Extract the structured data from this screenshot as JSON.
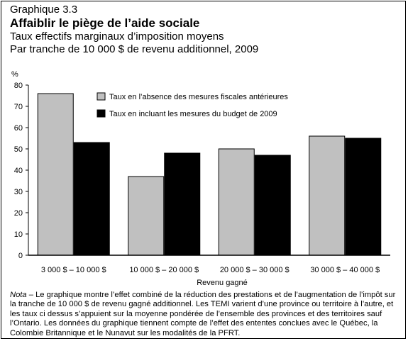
{
  "header": {
    "label": "Graphique 3.3",
    "title": "Affaiblir le piège de l’aide sociale",
    "subtitle1": "Taux effectifs marginaux d’imposition moyens",
    "subtitle2": "Par tranche de 10 000 $ de revenu additionnel, 2009"
  },
  "chart_data": {
    "type": "bar",
    "ylabel": "%",
    "xlabel": "Revenu gagné",
    "ylim": [
      0,
      80
    ],
    "yticks": [
      0,
      10,
      20,
      30,
      40,
      50,
      60,
      70,
      80
    ],
    "grid": false,
    "legend_position": "top-right",
    "categories": [
      "3 000 $ – 10 000 $",
      "10 000 $ – 20 000 $",
      "20 000 $ – 30 000 $",
      "30 000 $ – 40 000 $"
    ],
    "series": [
      {
        "name": "Taux en l’absence des mesures fiscales antérieures",
        "values": [
          76,
          37,
          50,
          56
        ],
        "color": "#c0c0c0"
      },
      {
        "name": "Taux en incluant les mesures du budget de 2009",
        "values": [
          53,
          48,
          47,
          55
        ],
        "color": "#000000"
      }
    ]
  },
  "note": {
    "prefix": "Nota",
    "text": " – Le graphique montre l’effet combiné de la réduction des prestations et de l’augmentation de l’impôt sur la tranche de 10 000 $ de revenu gagné additionnel. Les TEMI varient d’une province ou territoire à l’autre, et les taux ci dessus s’appuient sur la moyenne pondérée de l’ensemble des provinces et des territoires sauf l’Ontario. Les données du graphique tiennent compte de l’effet des ententes conclues avec le Québec, la Colombie Britannique et le Nunavut sur les modalités de la PFRT."
  }
}
